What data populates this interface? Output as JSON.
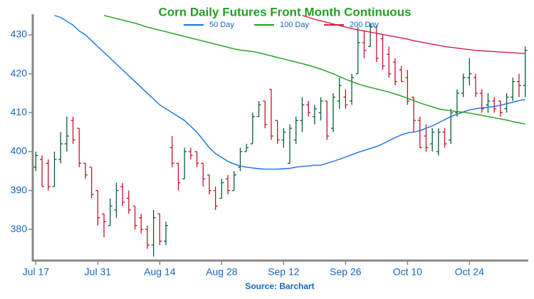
{
  "chart_data": {
    "type": "ohlc",
    "title": "Corn Daily Futures Front Month Continuous",
    "source": "Source: Barchart",
    "up_color": "#0a5c36",
    "down_color": "#c8102e",
    "categories": [
      "Jul 17",
      null,
      null,
      null,
      null,
      null,
      null,
      null,
      null,
      null,
      "Jul 31",
      null,
      null,
      null,
      null,
      null,
      null,
      null,
      null,
      null,
      "Aug 14",
      null,
      null,
      null,
      null,
      null,
      null,
      null,
      null,
      null,
      "Aug 28",
      null,
      null,
      null,
      null,
      null,
      null,
      null,
      null,
      null,
      "Sep 12",
      null,
      null,
      null,
      null,
      null,
      null,
      null,
      null,
      null,
      "Sep 26",
      null,
      null,
      null,
      null,
      null,
      null,
      null,
      null,
      null,
      "Oct 10",
      null,
      null,
      null,
      null,
      null,
      null,
      null,
      null,
      null,
      "Oct 24",
      null,
      null,
      null,
      null,
      null,
      null,
      null,
      null,
      null
    ],
    "ohlc": [
      [
        396,
        400,
        395,
        399
      ],
      [
        398,
        399,
        391,
        391
      ],
      [
        397,
        398,
        390,
        391
      ],
      [
        391,
        400,
        391,
        398
      ],
      [
        398,
        405,
        397,
        402
      ],
      [
        402,
        409,
        400,
        404
      ],
      [
        408,
        409,
        402,
        403
      ],
      [
        406,
        406,
        396,
        397
      ],
      [
        397,
        397,
        393,
        394
      ],
      [
        396,
        396,
        388,
        389
      ],
      [
        390,
        390,
        381,
        383
      ],
      [
        384,
        384,
        378,
        382
      ],
      [
        381,
        388,
        381,
        386
      ],
      [
        385,
        392,
        383,
        390
      ],
      [
        391,
        392,
        386,
        387
      ],
      [
        388,
        390,
        384,
        385
      ],
      [
        386,
        386,
        380,
        381
      ],
      [
        383,
        384,
        379,
        380
      ],
      [
        380,
        381,
        375,
        376
      ],
      [
        376,
        385,
        373,
        383
      ],
      [
        384,
        384,
        376,
        377
      ],
      [
        377,
        382,
        376,
        381
      ],
      [
        401,
        404,
        396,
        397
      ],
      [
        397,
        397,
        390,
        392
      ],
      [
        393,
        401,
        393,
        400
      ],
      [
        400,
        401,
        398,
        399
      ],
      [
        400,
        400,
        396,
        397
      ],
      [
        397,
        397,
        391,
        393
      ],
      [
        394,
        394,
        389,
        390
      ],
      [
        390,
        391,
        385,
        386
      ],
      [
        388,
        393,
        388,
        392
      ],
      [
        393,
        394,
        389,
        390
      ],
      [
        390,
        395,
        390,
        394
      ],
      [
        396,
        401,
        395,
        400
      ],
      [
        400,
        402,
        400,
        401
      ],
      [
        402,
        410,
        402,
        409
      ],
      [
        409,
        413,
        409,
        412
      ],
      [
        413,
        413,
        406,
        407
      ],
      [
        416,
        416,
        403,
        404
      ],
      [
        408,
        408,
        402,
        403
      ],
      [
        403,
        406,
        401,
        405
      ],
      [
        397,
        407,
        397,
        406
      ],
      [
        403,
        409,
        402,
        408
      ],
      [
        408,
        414,
        405,
        412
      ],
      [
        412,
        413,
        409,
        410
      ],
      [
        409,
        412,
        407,
        411
      ],
      [
        410,
        414,
        408,
        413
      ],
      [
        413,
        413,
        403,
        404
      ],
      [
        406,
        415,
        405,
        414
      ],
      [
        413,
        419,
        411,
        417
      ],
      [
        414,
        416,
        411,
        412
      ],
      [
        413,
        420,
        412,
        419
      ],
      [
        420,
        432,
        420,
        428
      ],
      [
        428,
        431,
        424,
        426
      ],
      [
        427,
        433,
        427,
        432
      ],
      [
        432,
        432,
        423,
        424
      ],
      [
        429,
        430,
        421,
        422
      ],
      [
        425,
        427,
        419,
        420
      ],
      [
        423,
        424,
        417,
        418
      ],
      [
        421,
        422,
        418,
        418
      ],
      [
        419,
        421,
        412,
        413
      ],
      [
        414,
        414,
        405,
        408
      ],
      [
        408,
        409,
        401,
        401
      ],
      [
        404,
        407,
        400,
        401
      ],
      [
        402,
        406,
        400,
        405
      ],
      [
        400,
        406,
        399,
        405
      ],
      [
        405,
        406,
        401,
        402
      ],
      [
        403,
        411,
        402,
        410
      ],
      [
        410,
        416,
        409,
        415
      ],
      [
        415,
        420,
        414,
        419
      ],
      [
        419,
        424,
        417,
        420
      ],
      [
        419,
        420,
        414,
        415
      ],
      [
        415,
        416,
        410,
        411
      ],
      [
        412,
        415,
        410,
        413
      ],
      [
        413,
        414,
        410,
        411
      ],
      [
        413,
        413,
        409,
        410
      ],
      [
        411,
        415,
        410,
        414
      ],
      [
        414,
        419,
        413,
        418
      ],
      [
        418,
        420,
        414,
        417
      ],
      [
        417,
        427,
        414,
        426
      ]
    ],
    "series": [
      {
        "name": "50 Day",
        "color": "#1a6fe0",
        "values": [
          null,
          null,
          null,
          435,
          434.5,
          433.5,
          432.5,
          431,
          430,
          428.5,
          427,
          425.5,
          424,
          422.5,
          421,
          419.5,
          418,
          416.5,
          415,
          413.5,
          412,
          411,
          410,
          409,
          408,
          406.5,
          405,
          403,
          401,
          399.5,
          398.5,
          397.5,
          396.8,
          396.3,
          396,
          395.8,
          395.6,
          395.5,
          395.5,
          395.5,
          395.6,
          395.7,
          396,
          396.2,
          396.3,
          396.5,
          396.5,
          397,
          397.5,
          398,
          398.6,
          399.2,
          399.8,
          400.3,
          400.8,
          401.3,
          402,
          402.8,
          403.6,
          404.3,
          404.8,
          405,
          405.4,
          406,
          406.6,
          407.4,
          408.2,
          409,
          409.6,
          410.2,
          410.7,
          411,
          411.2,
          411.4,
          411.6,
          411.9,
          412.3,
          412.7,
          413.1,
          413.4
        ]
      },
      {
        "name": "100 Day",
        "color": "#1e9e1e",
        "values": [
          null,
          null,
          null,
          null,
          null,
          null,
          null,
          null,
          null,
          null,
          null,
          435,
          434.6,
          434.2,
          433.8,
          433.4,
          433,
          432.5,
          432,
          431.6,
          431.2,
          430.8,
          430.4,
          430,
          429.6,
          429.2,
          428.8,
          428.4,
          428,
          427.6,
          427.2,
          426.8,
          426.4,
          426.1,
          425.9,
          425.7,
          425.4,
          425,
          424.6,
          424.2,
          423.8,
          423.4,
          423,
          422.6,
          422.2,
          421.7,
          421.2,
          420.6,
          420,
          419.3,
          418.6,
          418,
          417.4,
          416.9,
          416.5,
          416.1,
          415.7,
          415.3,
          414.8,
          414.3,
          413.7,
          413.1,
          412.5,
          412,
          411.5,
          411,
          410.7,
          410.5,
          410.3,
          410.1,
          409.9,
          409.6,
          409.3,
          409,
          408.7,
          408.4,
          408.1,
          407.7,
          407.4,
          407.1
        ]
      },
      {
        "name": "200 Day",
        "color": "#d0223f",
        "values": [
          null,
          null,
          null,
          null,
          null,
          null,
          null,
          null,
          null,
          null,
          null,
          null,
          null,
          null,
          null,
          null,
          null,
          null,
          null,
          null,
          null,
          null,
          null,
          null,
          null,
          null,
          null,
          null,
          null,
          null,
          null,
          null,
          null,
          null,
          null,
          null,
          null,
          null,
          null,
          null,
          null,
          null,
          null,
          435,
          434.5,
          434,
          433.6,
          433.2,
          432.8,
          432.4,
          432,
          431.6,
          431.3,
          431,
          430.7,
          430.4,
          430.1,
          429.8,
          429.5,
          429.2,
          428.9,
          428.5,
          428.2,
          427.9,
          427.6,
          427.3,
          427,
          426.8,
          426.6,
          426.4,
          426.2,
          426,
          425.9,
          425.8,
          425.7,
          425.6,
          425.5,
          425.4,
          425.3,
          425.2
        ]
      }
    ],
    "ylim": [
      372,
      435.3
    ],
    "yticks": [
      380,
      390,
      400,
      410,
      420,
      430
    ],
    "grid": false
  }
}
